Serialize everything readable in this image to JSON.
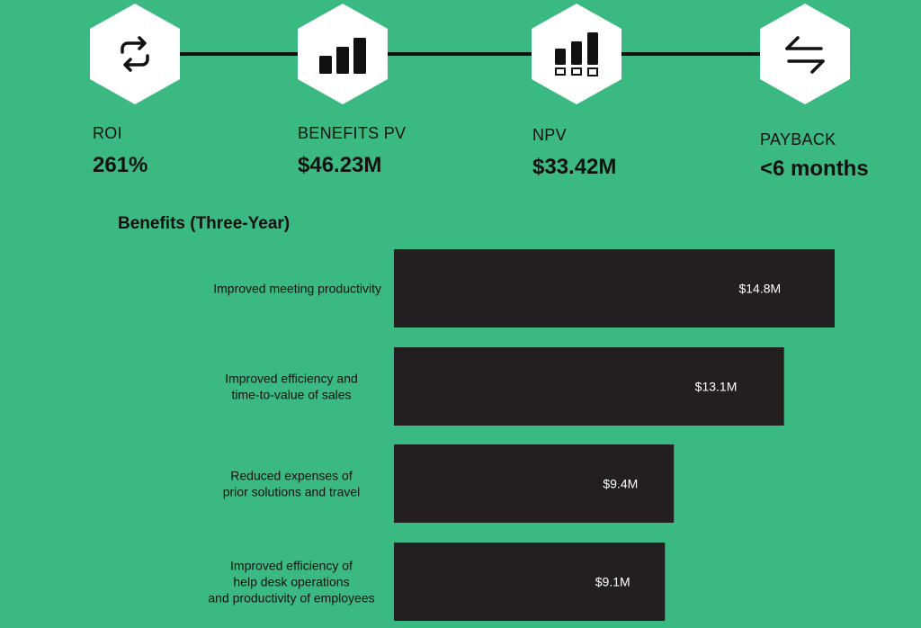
{
  "metrics": [
    {
      "icon": "refresh-icon",
      "label": "ROI",
      "value": "261%"
    },
    {
      "icon": "bar-chart-icon",
      "label": "BENEFITS PV",
      "value": "$46.23M"
    },
    {
      "icon": "bar-chart-with-boxes-icon",
      "label": "NPV",
      "value": "$33.42M"
    },
    {
      "icon": "arrows-exchange-icon",
      "label": "PAYBACK",
      "value": "<6 months"
    }
  ],
  "colors": {
    "background": "#3bb982",
    "bar": "#231f20",
    "hexagon": "#ffffff",
    "text": "#111111",
    "bar_text": "#ffffff"
  },
  "chart_data": {
    "type": "bar",
    "orientation": "horizontal",
    "title": "Benefits (Three-Year)",
    "categories": [
      [
        "Improved meeting productivity"
      ],
      [
        "Improved efficiency and",
        "time-to-value of sales"
      ],
      [
        "Reduced expenses of",
        "prior solutions and travel"
      ],
      [
        "Improved efficiency of",
        "help desk operations",
        "and productivity of employees"
      ]
    ],
    "values": [
      14.8,
      13.1,
      9.4,
      9.1
    ],
    "value_labels": [
      "$14.8M",
      "$13.1M",
      "$9.4M",
      "$9.1M"
    ],
    "unit": "$M",
    "xlim": [
      0,
      16
    ],
    "grid": false,
    "legend": "none"
  }
}
